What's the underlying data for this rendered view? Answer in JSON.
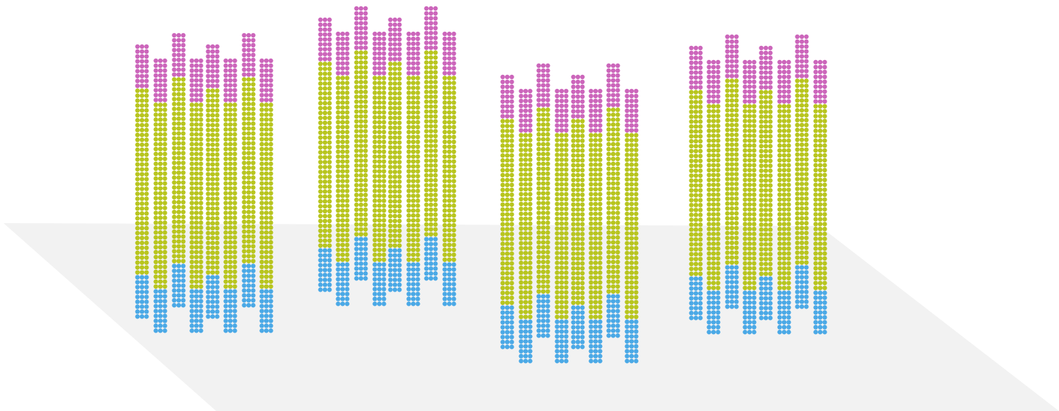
{
  "colors": {
    "top": "#cc66bb",
    "middle": "#b8c51f",
    "bottom": "#4ba9e6",
    "floor": "#f2f2f2"
  },
  "groups": [
    {
      "id": "group-1",
      "columns": [
        {
          "top": 9,
          "middle": 38,
          "bottom": 9
        },
        {
          "top": 9,
          "middle": 38,
          "bottom": 9
        },
        {
          "top": 9,
          "middle": 38,
          "bottom": 9
        },
        {
          "top": 9,
          "middle": 38,
          "bottom": 9
        },
        {
          "top": 9,
          "middle": 38,
          "bottom": 9
        },
        {
          "top": 9,
          "middle": 38,
          "bottom": 9
        },
        {
          "top": 9,
          "middle": 38,
          "bottom": 9
        },
        {
          "top": 9,
          "middle": 38,
          "bottom": 9
        }
      ]
    },
    {
      "id": "group-2",
      "columns": [
        {
          "top": 9,
          "middle": 38,
          "bottom": 9
        },
        {
          "top": 9,
          "middle": 38,
          "bottom": 9
        },
        {
          "top": 9,
          "middle": 38,
          "bottom": 9
        },
        {
          "top": 9,
          "middle": 38,
          "bottom": 9
        },
        {
          "top": 9,
          "middle": 38,
          "bottom": 9
        },
        {
          "top": 9,
          "middle": 38,
          "bottom": 9
        },
        {
          "top": 9,
          "middle": 38,
          "bottom": 9
        },
        {
          "top": 9,
          "middle": 38,
          "bottom": 9
        }
      ]
    },
    {
      "id": "group-3",
      "columns": [
        {
          "top": 9,
          "middle": 38,
          "bottom": 9
        },
        {
          "top": 9,
          "middle": 38,
          "bottom": 9
        },
        {
          "top": 9,
          "middle": 38,
          "bottom": 9
        },
        {
          "top": 9,
          "middle": 38,
          "bottom": 9
        },
        {
          "top": 9,
          "middle": 38,
          "bottom": 9
        },
        {
          "top": 9,
          "middle": 38,
          "bottom": 9
        },
        {
          "top": 9,
          "middle": 38,
          "bottom": 9
        },
        {
          "top": 9,
          "middle": 38,
          "bottom": 9
        }
      ]
    },
    {
      "id": "group-4",
      "columns": [
        {
          "top": 9,
          "middle": 38,
          "bottom": 9
        },
        {
          "top": 9,
          "middle": 38,
          "bottom": 9
        },
        {
          "top": 9,
          "middle": 38,
          "bottom": 9
        },
        {
          "top": 9,
          "middle": 38,
          "bottom": 9
        },
        {
          "top": 9,
          "middle": 38,
          "bottom": 9
        },
        {
          "top": 9,
          "middle": 38,
          "bottom": 9
        },
        {
          "top": 9,
          "middle": 38,
          "bottom": 9
        },
        {
          "top": 9,
          "middle": 38,
          "bottom": 9
        }
      ]
    }
  ]
}
